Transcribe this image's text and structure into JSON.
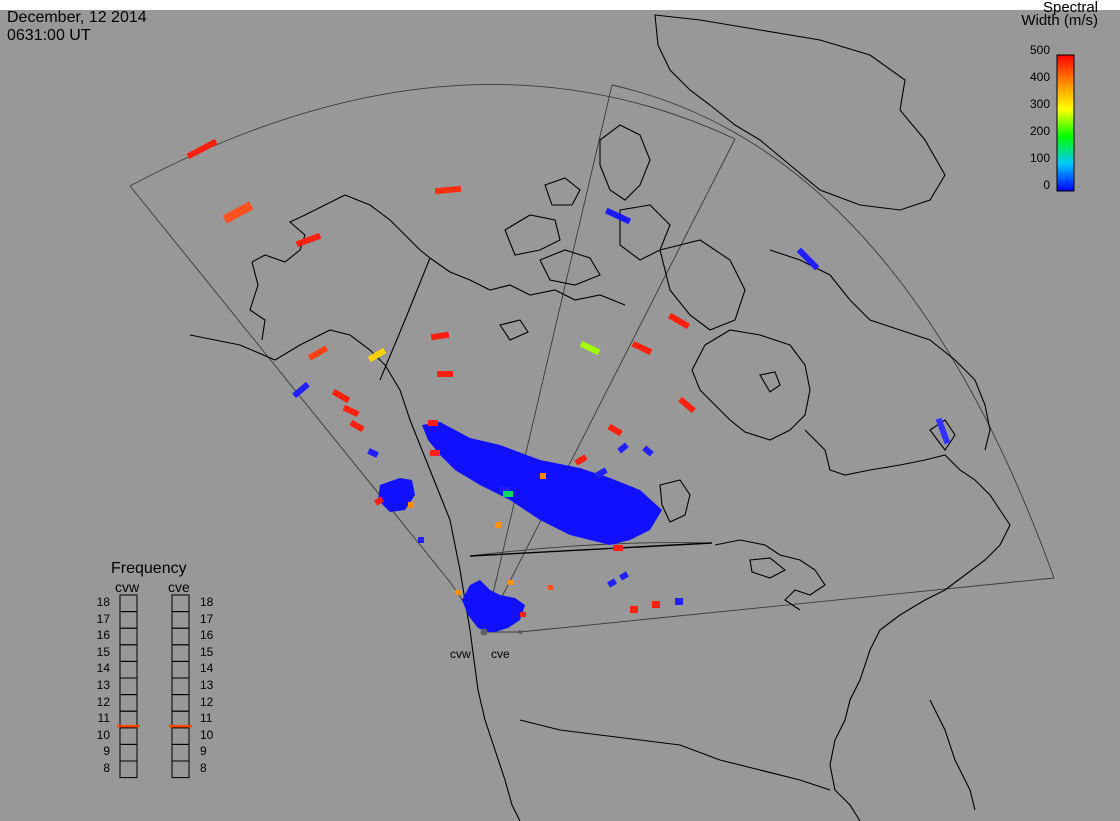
{
  "title": {
    "date": "December, 12 2014",
    "time": "0631:00 UT"
  },
  "colorbar": {
    "title_line1": "Spectral",
    "title_line2": "Width (m/s)",
    "ticks": [
      "500",
      "400",
      "300",
      "200",
      "100",
      "0"
    ],
    "colors": [
      "#0000ff",
      "#00c8ff",
      "#00ff00",
      "#ffff00",
      "#ff8800",
      "#ff0000"
    ]
  },
  "frequency": {
    "title": "Frequency",
    "radars": [
      "cvw",
      "cve"
    ],
    "scale": [
      "18",
      "17",
      "16",
      "15",
      "14",
      "13",
      "12",
      "11",
      "10",
      "9",
      "8"
    ],
    "cvw_mhz": 10.6,
    "cve_mhz": 10.6,
    "marker_color": "#ff4400"
  },
  "radar_labels": {
    "cvw": "cvw",
    "cve": "cve"
  },
  "colors": {
    "background": "#989898",
    "coastline": "#000000",
    "fov": "#404040",
    "scatter_main": "#1010ff",
    "scatter_red": "#ff2010"
  }
}
